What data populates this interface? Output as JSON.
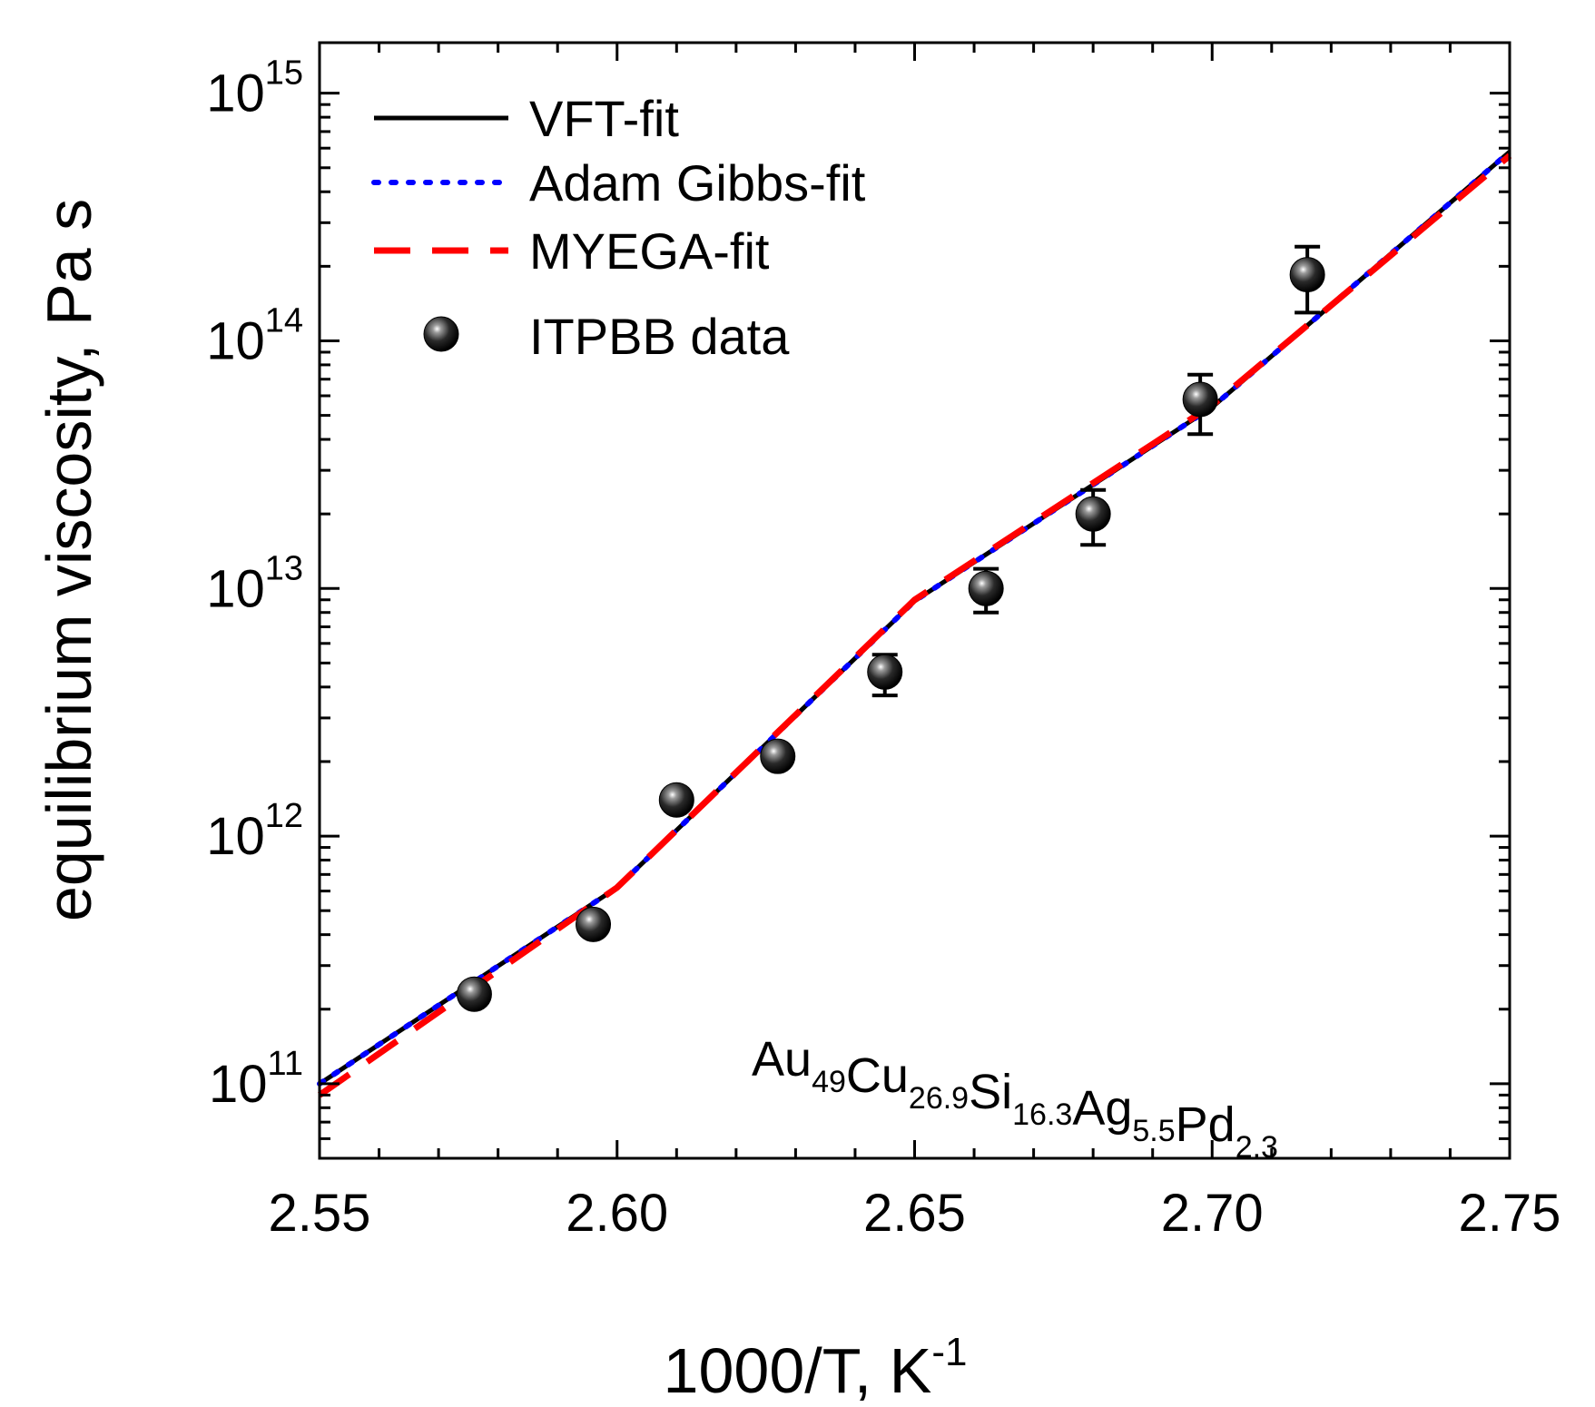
{
  "chart_data": {
    "type": "scatter",
    "title": "",
    "xlabel": "1000/T, K",
    "xlabel_sup": "-1",
    "ylabel": "equilibrium viscosity,  Pa s",
    "xlim": [
      2.55,
      2.75
    ],
    "ylim": [
      50000000000.0,
      1600000000000000.0
    ],
    "yscale": "log",
    "x_ticks": [
      {
        "value": 2.55,
        "label": "2.55"
      },
      {
        "value": 2.6,
        "label": "2.60"
      },
      {
        "value": 2.65,
        "label": "2.65"
      },
      {
        "value": 2.7,
        "label": "2.70"
      },
      {
        "value": 2.75,
        "label": "2.75"
      }
    ],
    "y_ticks": [
      {
        "exp": 11,
        "base": "10",
        "sup": "11"
      },
      {
        "exp": 12,
        "base": "10",
        "sup": "12"
      },
      {
        "exp": 13,
        "base": "10",
        "sup": "13"
      },
      {
        "exp": 14,
        "base": "10",
        "sup": "14"
      },
      {
        "exp": 15,
        "base": "10",
        "sup": "15"
      }
    ],
    "series": [
      {
        "name": "VFT-fit",
        "kind": "line",
        "color": "#000000",
        "style": "solid",
        "x": [
          2.55,
          2.6,
          2.65,
          2.7,
          2.75
        ],
        "y": [
          100000000000.0,
          620000000000.0,
          8900000000000.0,
          54000000000000.0,
          580000000000000.0
        ]
      },
      {
        "name": "Adam Gibbs-fit",
        "kind": "line",
        "color": "#0000ff",
        "style": "dotted",
        "x": [
          2.55,
          2.6,
          2.65,
          2.7,
          2.75
        ],
        "y": [
          100000000000.0,
          620000000000.0,
          8900000000000.0,
          54000000000000.0,
          580000000000000.0
        ]
      },
      {
        "name": "MYEGA-fit",
        "kind": "line",
        "color": "#ff0000",
        "style": "dashed",
        "x": [
          2.55,
          2.6,
          2.65,
          2.7,
          2.75
        ],
        "y": [
          90000000000.0,
          620000000000.0,
          9000000000000.0,
          55000000000000.0,
          560000000000000.0
        ]
      },
      {
        "name": "ITPBB data",
        "kind": "points",
        "color": "#000000",
        "x": [
          2.576,
          2.596,
          2.61,
          2.627,
          2.645,
          2.662,
          2.68,
          2.698,
          2.716
        ],
        "y": [
          230000000000.0,
          440000000000.0,
          1400000000000.0,
          2100000000000.0,
          4600000000000.0,
          10000000000000.0,
          20000000000000.0,
          58000000000000.0,
          185000000000000.0
        ],
        "err_low": [
          null,
          null,
          null,
          null,
          3700000000000.0,
          8000000000000.0,
          15000000000000.0,
          42000000000000.0,
          130000000000000.0
        ],
        "err_high": [
          null,
          null,
          null,
          null,
          5400000000000.0,
          12000000000000.0,
          25000000000000.0,
          73000000000000.0,
          240000000000000.0
        ]
      }
    ],
    "legend_position": "top-left",
    "annotation": {
      "parts": [
        {
          "base": "Au",
          "sub": "49"
        },
        {
          "base": "Cu",
          "sub": "26.9"
        },
        {
          "base": "Si",
          "sub": "16.3"
        },
        {
          "base": "Ag",
          "sub": "5.5"
        },
        {
          "base": "Pd",
          "sub": "2.3"
        }
      ]
    }
  }
}
